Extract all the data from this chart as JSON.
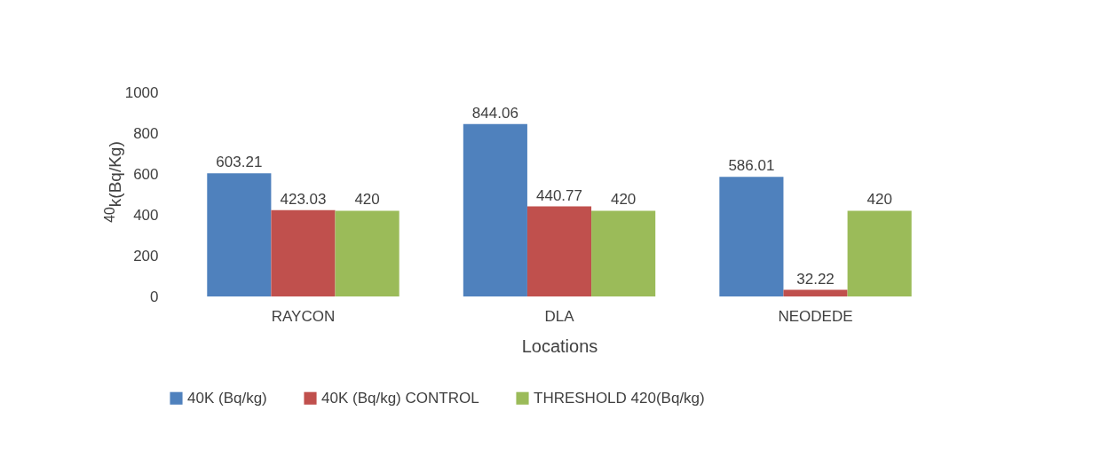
{
  "chart_data": {
    "type": "bar",
    "xlabel": "Locations",
    "ylabel": "$^{40}$k(Bq/Kg)",
    "categories": [
      "RAYCON",
      "DLA",
      "NEODEDE"
    ],
    "series": [
      {
        "name": "40K (Bq/kg)",
        "color": "#4f81bd",
        "values": [
          603.21,
          844.06,
          586.01
        ]
      },
      {
        "name": "40K (Bq/kg) CONTROL",
        "color": "#c0504d",
        "values": [
          423.03,
          440.77,
          32.22
        ]
      },
      {
        "name": "THRESHOLD 420(Bq/kg)",
        "color": "#9bbb59",
        "values": [
          420,
          420,
          420
        ]
      }
    ],
    "ylim": [
      0,
      1000
    ],
    "yticks": [
      0,
      200,
      400,
      600,
      800,
      1000
    ],
    "data_labels": true,
    "legend": "bottom"
  }
}
